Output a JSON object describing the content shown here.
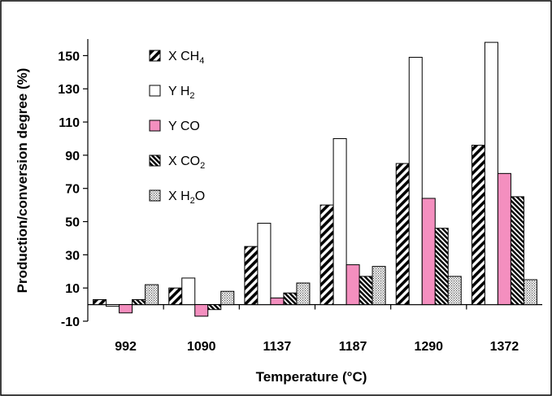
{
  "chart_data": {
    "type": "bar",
    "xlabel": "Temperature (°C)",
    "ylabel": "Production/conversion degree (%)",
    "ylim": [
      -10,
      160
    ],
    "yticks": [
      -10,
      10,
      30,
      50,
      70,
      90,
      110,
      130,
      150
    ],
    "categories": [
      "992",
      "1090",
      "1137",
      "1187",
      "1290",
      "1372"
    ],
    "legend_position": "top-left",
    "grid": false,
    "series": [
      {
        "name": "X CH4",
        "name_base": "X CH",
        "name_sub": "4",
        "pattern": "diag-wide",
        "values": [
          3,
          10,
          35,
          60,
          85,
          96
        ]
      },
      {
        "name": "Y H2",
        "name_base": "Y H",
        "name_sub": "2",
        "pattern": "white",
        "values": [
          -1,
          16,
          49,
          100,
          149,
          158
        ]
      },
      {
        "name": "Y CO",
        "name_base": "Y CO",
        "name_sub": "",
        "pattern": "pink",
        "color": "#f48fbf",
        "values": [
          -5,
          -7,
          4,
          24,
          64,
          79
        ]
      },
      {
        "name": "X CO2",
        "name_base": "X CO",
        "name_sub": "2",
        "pattern": "diag-dense",
        "values": [
          3,
          -3,
          7,
          17,
          46,
          65
        ]
      },
      {
        "name": "X H2O",
        "name_base": "X H",
        "name_sub": "2",
        "name_tail": "O",
        "pattern": "dots",
        "values": [
          12,
          8,
          13,
          23,
          17,
          15
        ]
      }
    ]
  }
}
